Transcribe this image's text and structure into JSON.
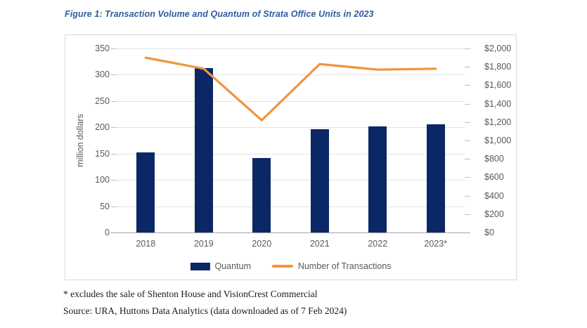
{
  "figure_title": "Figure 1: Transaction Volume and Quantum of Strata Office Units in 2023",
  "footnotes": {
    "asterisk": "* excludes the sale of Shenton House and VisionCrest Commercial",
    "source": "Source: URA, Huttons Data Analytics (data downloaded as of 7 Feb 2024)"
  },
  "colors": {
    "bar": "#0b2766",
    "line": "#f0953f",
    "title_text": "#305a9e",
    "grid": "#e3e3e3",
    "axis": "#a6a6a6",
    "tick_text": "#595959"
  },
  "chart_data": {
    "type": "combo",
    "subtypes": [
      "bar",
      "line"
    ],
    "title": "Figure 1: Transaction Volume and Quantum of Strata Office Units in 2023",
    "categories": [
      "2018",
      "2019",
      "2020",
      "2021",
      "2022",
      "2023*"
    ],
    "series": [
      {
        "name": "Quantum",
        "type": "bar",
        "axis": "left",
        "values": [
          152,
          312,
          141,
          197,
          202,
          206
        ]
      },
      {
        "name": "Number of Transactions",
        "type": "line",
        "axis": "right",
        "values": [
          1900,
          1780,
          1220,
          1830,
          1770,
          1780
        ]
      }
    ],
    "left_axis": {
      "label": "million dollars",
      "min": 0,
      "max": 350,
      "step": 50,
      "tick_labels": [
        "0",
        "50",
        "100",
        "150",
        "200",
        "250",
        "300",
        "350"
      ]
    },
    "right_axis": {
      "label": "",
      "min": 0,
      "max": 2000,
      "step": 200,
      "tick_labels": [
        "$0",
        "$200",
        "$400",
        "$600",
        "$800",
        "$1,000",
        "$1,200",
        "$1,400",
        "$1,600",
        "$1,800",
        "$2,000"
      ]
    },
    "legend": [
      "Quantum",
      "Number of Transactions"
    ],
    "legend_position": "bottom",
    "grid": true
  }
}
